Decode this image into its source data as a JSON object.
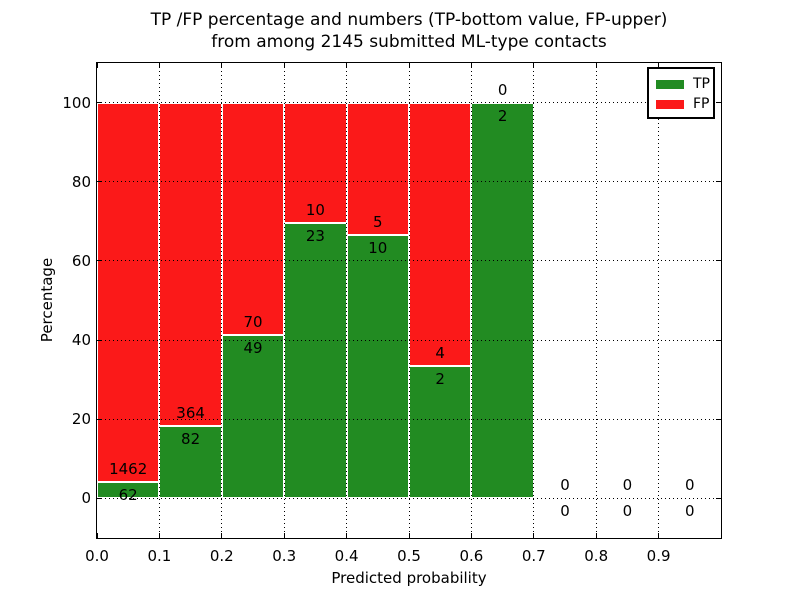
{
  "chart_data": {
    "type": "bar",
    "stacked": true,
    "title": "TP /FP percentage and numbers (TP-bottom value, FP-upper)\nfrom among 2145 submitted ML-type contacts",
    "title_line1": "TP /FP percentage and numbers (TP-bottom value, FP-upper)",
    "title_line2": "from among 2145 submitted ML-type contacts",
    "xlabel": "Predicted probability",
    "ylabel": "Percentage",
    "xlim": [
      0.0,
      1.0
    ],
    "ylim": [
      -10,
      110
    ],
    "grid": true,
    "legend_position": "upper right",
    "bin_width": 0.1,
    "bin_starts": [
      0.0,
      0.1,
      0.2,
      0.3,
      0.4,
      0.5,
      0.6,
      0.7,
      0.8,
      0.9
    ],
    "xtick_values": [
      0.0,
      0.1,
      0.2,
      0.3,
      0.4,
      0.5,
      0.6,
      0.7,
      0.8,
      0.9
    ],
    "xtick_labels": [
      "0.0",
      "0.1",
      "0.2",
      "0.3",
      "0.4",
      "0.5",
      "0.6",
      "0.7",
      "0.8",
      "0.9"
    ],
    "ytick_values": [
      0,
      20,
      40,
      60,
      80,
      100
    ],
    "ytick_labels": [
      "0",
      "20",
      "40",
      "60",
      "80",
      "100"
    ],
    "series": [
      {
        "name": "TP",
        "color": "#228b22",
        "counts": [
          62,
          82,
          49,
          23,
          10,
          2,
          2,
          0,
          0,
          0
        ]
      },
      {
        "name": "FP",
        "color": "#fb1919",
        "counts": [
          1462,
          364,
          70,
          10,
          5,
          4,
          0,
          0,
          0,
          0
        ]
      }
    ],
    "tp_percent": [
      4.1,
      18.4,
      41.2,
      69.7,
      66.7,
      33.3,
      100.0,
      0.0,
      0.0,
      0.0
    ],
    "total_contacts": 2145,
    "colors": {
      "spine": "#000000",
      "grid": "#000000",
      "bar_edge": "#ffffff",
      "background": "#ffffff"
    }
  }
}
